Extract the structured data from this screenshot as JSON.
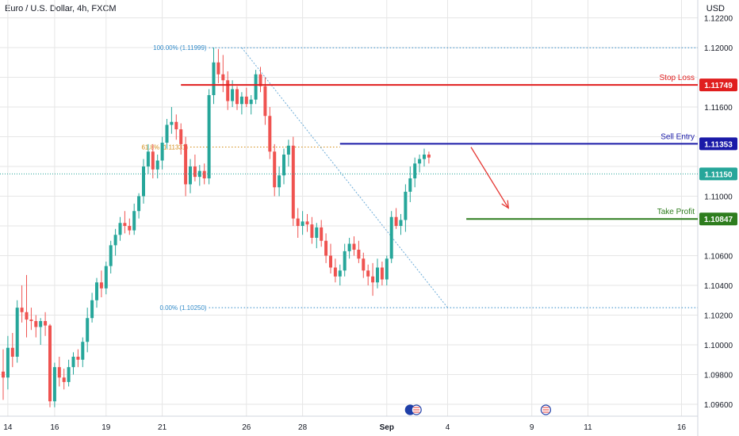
{
  "header": {
    "title": "Euro / U.S. Dollar, 4h, FXCM",
    "currency": "USD"
  },
  "colors": {
    "up": "#26a69a",
    "down": "#ef5350",
    "grid": "#e6e6e6",
    "stop": "#e01e1e",
    "sell": "#1a1aa8",
    "take": "#2e7d1e",
    "fib": "#2f89c8",
    "fibMid": "#d38c16",
    "price": "#26a69a",
    "arrow": "#e53935"
  },
  "chart_data": {
    "type": "candlestick",
    "symbol": "Euro / U.S. Dollar, 4h, FXCM",
    "ylim": [
      1.0952,
      1.1232
    ],
    "y_ticks": [
      1.122,
      1.12,
      1.118,
      1.116,
      1.114,
      1.112,
      1.11,
      1.108,
      1.106,
      1.104,
      1.102,
      1.1,
      1.098,
      1.096
    ],
    "y_tick_labels": [
      "1.12200",
      "1.12000",
      "1.11800",
      "1.11600",
      "1.11400",
      "1.11200",
      "1.11000",
      "1.10800",
      "1.10600",
      "1.10400",
      "1.10200",
      "1.10000",
      "1.09800",
      "1.09600"
    ],
    "x_labels": [
      {
        "label": "14",
        "index": 1
      },
      {
        "label": "16",
        "index": 11
      },
      {
        "label": "19",
        "index": 22
      },
      {
        "label": "21",
        "index": 34
      },
      {
        "label": "26",
        "index": 52
      },
      {
        "label": "28",
        "index": 64
      },
      {
        "label": "Sep",
        "index": 82
      },
      {
        "label": "4",
        "index": 95
      },
      {
        "label": "9",
        "index": 113
      },
      {
        "label": "11",
        "index": 125
      },
      {
        "label": "16",
        "index": 145
      }
    ],
    "ohlc": [
      [
        1.0982,
        1.0997,
        1.0963,
        1.0978
      ],
      [
        1.0978,
        1.1006,
        1.097,
        1.0998
      ],
      [
        1.0998,
        1.1008,
        1.0985,
        1.0992
      ],
      [
        1.0992,
        1.103,
        1.0988,
        1.1025
      ],
      [
        1.1025,
        1.104,
        1.1015,
        1.1022
      ],
      [
        1.1022,
        1.1047,
        1.1005,
        1.1017
      ],
      [
        1.1017,
        1.1025,
        1.101,
        1.1016
      ],
      [
        1.1016,
        1.102,
        1.1005,
        1.1012
      ],
      [
        1.1012,
        1.1018,
        1.1,
        1.1016
      ],
      [
        1.1016,
        1.1022,
        1.1006,
        1.1013
      ],
      [
        1.1013,
        1.1014,
        1.0958,
        1.0962
      ],
      [
        1.0962,
        1.0988,
        1.0958,
        1.0985
      ],
      [
        1.0985,
        1.0992,
        1.0972,
        1.0978
      ],
      [
        1.0978,
        1.0984,
        1.097,
        1.0975
      ],
      [
        1.0975,
        1.099,
        1.0972,
        1.0985
      ],
      [
        1.0985,
        1.0995,
        1.098,
        1.0992
      ],
      [
        1.0992,
        1.0997,
        1.0985,
        1.099
      ],
      [
        1.099,
        1.1005,
        1.0985,
        1.1002
      ],
      [
        1.1002,
        1.1025,
        1.0995,
        1.1018
      ],
      [
        1.1018,
        1.1035,
        1.1015,
        1.103
      ],
      [
        1.103,
        1.1045,
        1.1025,
        1.1042
      ],
      [
        1.1042,
        1.105,
        1.1032,
        1.1038
      ],
      [
        1.1038,
        1.1056,
        1.1034,
        1.1053
      ],
      [
        1.1053,
        1.107,
        1.1048,
        1.1067
      ],
      [
        1.1067,
        1.1078,
        1.106,
        1.1074
      ],
      [
        1.1074,
        1.1086,
        1.107,
        1.1082
      ],
      [
        1.1082,
        1.109,
        1.1075,
        1.108
      ],
      [
        1.108,
        1.1085,
        1.1074,
        1.1077
      ],
      [
        1.1077,
        1.1095,
        1.1074,
        1.109
      ],
      [
        1.109,
        1.1102,
        1.1085,
        1.11
      ],
      [
        1.11,
        1.1125,
        1.1095,
        1.112
      ],
      [
        1.112,
        1.1135,
        1.1115,
        1.113
      ],
      [
        1.113,
        1.1135,
        1.1112,
        1.1118
      ],
      [
        1.1118,
        1.1128,
        1.1112,
        1.1124
      ],
      [
        1.1124,
        1.114,
        1.1118,
        1.1136
      ],
      [
        1.1136,
        1.1152,
        1.1132,
        1.1148
      ],
      [
        1.1148,
        1.116,
        1.1142,
        1.115
      ],
      [
        1.115,
        1.1155,
        1.1138,
        1.1145
      ],
      [
        1.1145,
        1.1149,
        1.1128,
        1.1135
      ],
      [
        1.1135,
        1.114,
        1.11,
        1.1108
      ],
      [
        1.1108,
        1.1125,
        1.1102,
        1.112
      ],
      [
        1.112,
        1.1128,
        1.111,
        1.1113
      ],
      [
        1.1113,
        1.1121,
        1.1107,
        1.1117
      ],
      [
        1.1117,
        1.1122,
        1.1108,
        1.1112
      ],
      [
        1.1112,
        1.1172,
        1.1108,
        1.1168
      ],
      [
        1.1168,
        1.12,
        1.1162,
        1.119
      ],
      [
        1.119,
        1.1199,
        1.1176,
        1.1182
      ],
      [
        1.1182,
        1.1195,
        1.117,
        1.1178
      ],
      [
        1.1178,
        1.1184,
        1.1158,
        1.1164
      ],
      [
        1.1164,
        1.1178,
        1.116,
        1.1172
      ],
      [
        1.1172,
        1.1174,
        1.1158,
        1.1162
      ],
      [
        1.1162,
        1.117,
        1.1155,
        1.1167
      ],
      [
        1.1167,
        1.1173,
        1.116,
        1.1162
      ],
      [
        1.1162,
        1.1168,
        1.1155,
        1.1165
      ],
      [
        1.1165,
        1.1185,
        1.1162,
        1.1182
      ],
      [
        1.1182,
        1.1187,
        1.117,
        1.1174
      ],
      [
        1.1174,
        1.118,
        1.1148,
        1.1154
      ],
      [
        1.1154,
        1.116,
        1.1125,
        1.113
      ],
      [
        1.113,
        1.1135,
        1.11,
        1.1106
      ],
      [
        1.1106,
        1.112,
        1.11,
        1.1114
      ],
      [
        1.1114,
        1.1132,
        1.1108,
        1.1128
      ],
      [
        1.1128,
        1.1138,
        1.112,
        1.1134
      ],
      [
        1.1134,
        1.114,
        1.108,
        1.1085
      ],
      [
        1.1085,
        1.1092,
        1.1072,
        1.108
      ],
      [
        1.108,
        1.109,
        1.1074,
        1.1083
      ],
      [
        1.1083,
        1.1088,
        1.1076,
        1.1081
      ],
      [
        1.1081,
        1.1086,
        1.1068,
        1.1072
      ],
      [
        1.1072,
        1.1082,
        1.1065,
        1.1079
      ],
      [
        1.1079,
        1.1084,
        1.1066,
        1.107
      ],
      [
        1.107,
        1.1075,
        1.1055,
        1.106
      ],
      [
        1.106,
        1.1068,
        1.1048,
        1.1052
      ],
      [
        1.1052,
        1.1058,
        1.1042,
        1.1046
      ],
      [
        1.1046,
        1.1054,
        1.104,
        1.105
      ],
      [
        1.105,
        1.1068,
        1.1046,
        1.1063
      ],
      [
        1.1063,
        1.1072,
        1.1058,
        1.1068
      ],
      [
        1.1068,
        1.1073,
        1.106,
        1.1064
      ],
      [
        1.1064,
        1.107,
        1.1055,
        1.1058
      ],
      [
        1.1058,
        1.1062,
        1.1045,
        1.105
      ],
      [
        1.105,
        1.1054,
        1.104,
        1.1046
      ],
      [
        1.1046,
        1.1055,
        1.1033,
        1.1042
      ],
      [
        1.1042,
        1.1058,
        1.1038,
        1.1052
      ],
      [
        1.1052,
        1.1056,
        1.104,
        1.1044
      ],
      [
        1.1044,
        1.106,
        1.104,
        1.1058
      ],
      [
        1.1058,
        1.109,
        1.1055,
        1.1086
      ],
      [
        1.1086,
        1.1092,
        1.1078,
        1.108
      ],
      [
        1.108,
        1.1088,
        1.1074,
        1.1084
      ],
      [
        1.1084,
        1.1108,
        1.1076,
        1.1103
      ],
      [
        1.1103,
        1.112,
        1.1096,
        1.1112
      ],
      [
        1.1112,
        1.1126,
        1.1106,
        1.1122
      ],
      [
        1.1122,
        1.1128,
        1.1116,
        1.1125
      ],
      [
        1.1125,
        1.1132,
        1.112,
        1.1128
      ],
      [
        1.1128,
        1.113,
        1.1122,
        1.1126
      ]
    ],
    "levels": [
      {
        "name": "Stop Loss",
        "value": 1.11749,
        "label": "1.11749"
      },
      {
        "name": "Sell Entry",
        "value": 1.11353,
        "label": "1.11353"
      },
      {
        "name": "Take Profit",
        "value": 1.10847,
        "label": "1.10847"
      }
    ],
    "current_price": {
      "value": 1.1115,
      "label": "1.11150"
    },
    "fib_levels": [
      {
        "label": "100.00% (1.11999)",
        "value": 1.11999
      },
      {
        "label": "61.8% (1.11331)",
        "value": 1.11331
      },
      {
        "label": "0.00% (1.10250)",
        "value": 1.1025
      }
    ],
    "event_icons": [
      {
        "name": "euro-flag-icon",
        "index": 87
      },
      {
        "name": "us-flag-icon",
        "index": 88
      },
      {
        "name": "us-flag-icon",
        "index": 116
      }
    ],
    "projection_arrow": {
      "from": {
        "index": 100,
        "value": 1.1133
      },
      "to": {
        "index": 108,
        "value": 1.1092
      }
    }
  }
}
